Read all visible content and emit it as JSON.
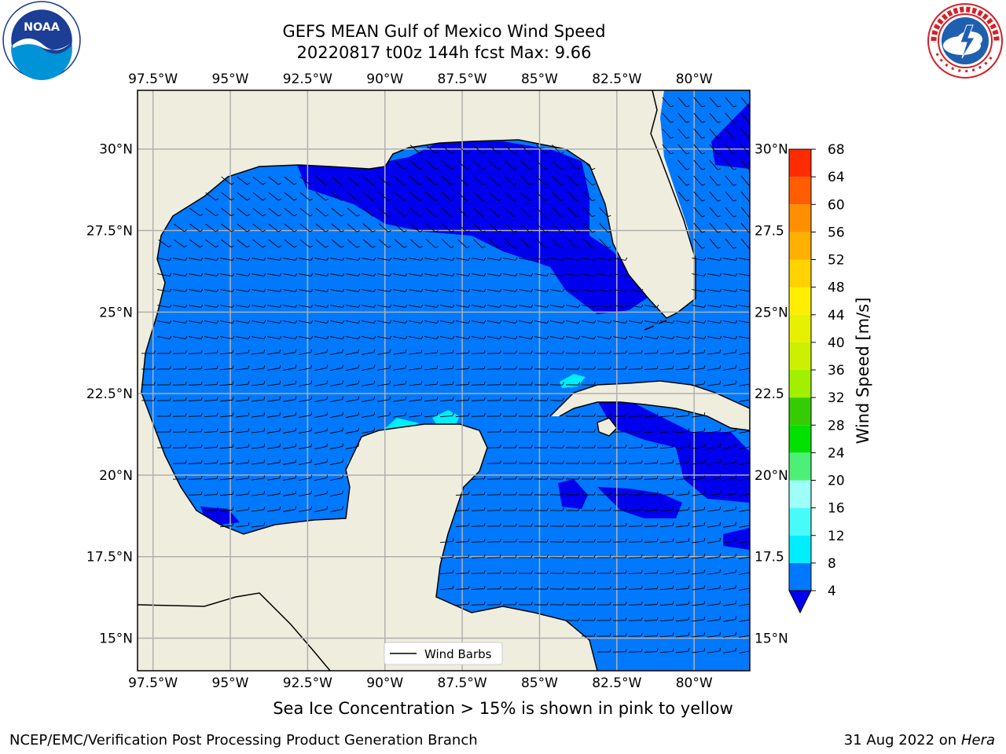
{
  "title": {
    "line1": "GEFS MEAN Gulf of Mexico Wind Speed",
    "line2": "20220817 t00z 144h fcst   Max: 9.66"
  },
  "map": {
    "lon_labels": [
      "97.5°W",
      "95°W",
      "92.5°W",
      "90°W",
      "87.5°W",
      "85°W",
      "82.5°W",
      "80°W"
    ],
    "lat_labels_left": [
      "30°N",
      "27.5°N",
      "25°N",
      "22.5°N",
      "20°N",
      "17.5°N",
      "15°N"
    ],
    "lat_labels_right": [
      "30°N",
      "27.5",
      "25°N",
      "22.5",
      "20°N",
      "17.5",
      "15°N"
    ],
    "lon_values": [
      -97.5,
      -95,
      -92.5,
      -90,
      -87.5,
      -85,
      -82.5,
      -80
    ],
    "lat_values": [
      30,
      27.5,
      25,
      22.5,
      20,
      17.5,
      15
    ],
    "extent": {
      "lon_min": -98,
      "lon_max": -78.2,
      "lat_min": 14,
      "lat_max": 31.8
    },
    "legend_label": "Wind Barbs",
    "land_color": "#efedde",
    "ocean_color": "#0079ff",
    "low_wind_color": "#0000ee",
    "max_speed": 9.66
  },
  "colorbar": {
    "label": "Wind Speed [m/s]",
    "levels": [
      4,
      8,
      12,
      16,
      20,
      24,
      28,
      32,
      36,
      40,
      44,
      48,
      52,
      56,
      60,
      64,
      68
    ],
    "colors": [
      "#0078ff",
      "#00eeff",
      "#48fbf8",
      "#9efff8",
      "#4df076",
      "#01e201",
      "#35cd01",
      "#a2f000",
      "#ccf000",
      "#e6f000",
      "#feee00",
      "#ffd200",
      "#ffb000",
      "#ff8f00",
      "#ff5d00",
      "#ff2c00"
    ],
    "under_color": "#0000ee"
  },
  "logos": {
    "left": "noaa-logo",
    "right": "nws-logo",
    "left_text": "NOAA"
  },
  "footer": {
    "subtitle": "Sea Ice Concentration > 15% is shown in pink to yellow",
    "credit": "NCEP/EMC/Verification Post Processing Product Generation Branch",
    "date": "31 Aug 2022 on",
    "host": "Hera"
  }
}
